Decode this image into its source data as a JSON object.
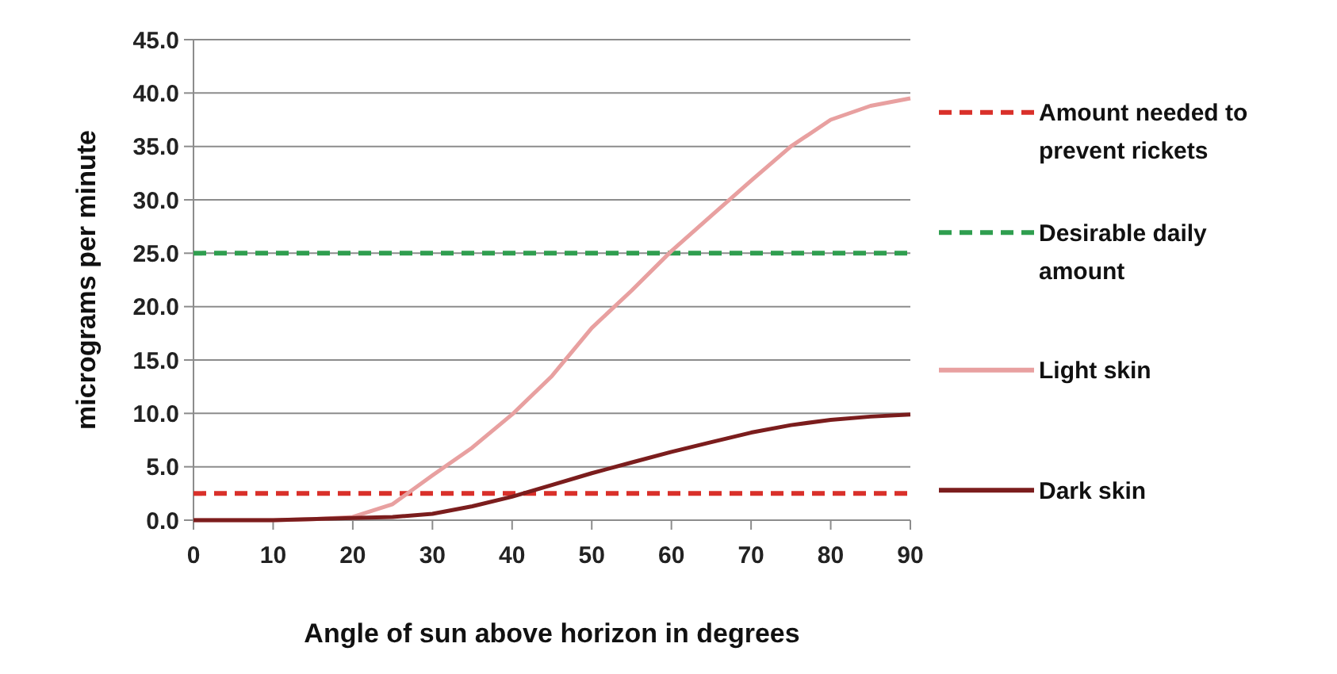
{
  "chart_data": {
    "type": "line",
    "xlabel": "Angle of sun above horizon in degrees",
    "ylabel": "micrograms per minute",
    "xlim": [
      0,
      90
    ],
    "xticks": [
      0,
      10,
      20,
      30,
      40,
      50,
      60,
      70,
      80,
      90
    ],
    "ylim": [
      0,
      45
    ],
    "yticks": [
      {
        "value": 0,
        "label": "0.0"
      },
      {
        "value": 5,
        "label": "5.0"
      },
      {
        "value": 10,
        "label": "10.0"
      },
      {
        "value": 15,
        "label": "15.0"
      },
      {
        "value": 20,
        "label": "20.0"
      },
      {
        "value": 25,
        "label": "25.0"
      },
      {
        "value": 30,
        "label": "30.0"
      },
      {
        "value": 35,
        "label": "35.0"
      },
      {
        "value": 40,
        "label": "40.0"
      },
      {
        "value": 45,
        "label": "45.0"
      }
    ],
    "grid": "y",
    "legend": "right",
    "marker": "none",
    "series": [
      {
        "name": "Amount needed to prevent rickets",
        "color": "#d9302a",
        "line_style": "dashed",
        "x": [
          0,
          90
        ],
        "values": [
          2.5,
          2.5
        ]
      },
      {
        "name": "Desirable daily amount",
        "color": "#2f9e4f",
        "line_style": "dashed",
        "x": [
          0,
          90
        ],
        "values": [
          25,
          25
        ]
      },
      {
        "name": "Light skin",
        "color": "#e8a0a0",
        "line_style": "solid",
        "x": [
          0,
          5,
          10,
          15,
          20,
          25,
          30,
          35,
          40,
          45,
          50,
          55,
          60,
          65,
          70,
          75,
          80,
          85,
          90
        ],
        "values": [
          0,
          0,
          0,
          0.1,
          0.3,
          1.5,
          4.2,
          6.8,
          9.9,
          13.5,
          18,
          21.5,
          25.2,
          28.5,
          31.8,
          35,
          37.5,
          38.8,
          39.5
        ]
      },
      {
        "name": "Dark skin",
        "color": "#7b1d1d",
        "line_style": "solid",
        "x": [
          0,
          10,
          20,
          25,
          30,
          35,
          40,
          45,
          50,
          55,
          60,
          65,
          70,
          75,
          80,
          85,
          90
        ],
        "values": [
          0,
          0,
          0.2,
          0.3,
          0.6,
          1.3,
          2.2,
          3.3,
          4.4,
          5.4,
          6.4,
          7.3,
          8.2,
          8.9,
          9.4,
          9.7,
          9.9
        ]
      }
    ]
  }
}
